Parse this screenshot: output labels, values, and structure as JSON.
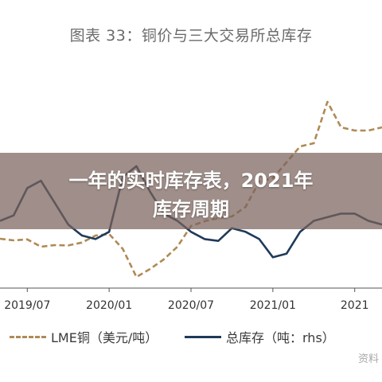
{
  "figure_title": "图表 33：铜价与三大交易所总库存",
  "overlay": {
    "line1": "一年的实时库存表，2021年",
    "line2": "库存周期"
  },
  "legend": {
    "series1_label": "LME铜（美元/吨）",
    "series2_label": "总库存（吨：rhs）"
  },
  "watermark": "资料",
  "colors": {
    "lme": "#b08a55",
    "inventory": "#1f3a5a",
    "axis": "#555555",
    "overlay": "#7a625c"
  },
  "chart_data": {
    "type": "line",
    "title": "图表 33：铜价与三大交易所总库存",
    "x_tick_labels": [
      "2019/07",
      "2020/01",
      "2020/07",
      "2021/01",
      "2021"
    ],
    "x_range": [
      "2019-05",
      "2021-09"
    ],
    "series": [
      {
        "name": "LME铜（美元/吨）",
        "style": "dashed",
        "axis": "left",
        "x": [
          "2019-05",
          "2019-06",
          "2019-07",
          "2019-08",
          "2019-09",
          "2019-10",
          "2019-11",
          "2019-12",
          "2020-01",
          "2020-02",
          "2020-03",
          "2020-04",
          "2020-05",
          "2020-06",
          "2020-07",
          "2020-08",
          "2020-09",
          "2020-10",
          "2020-11",
          "2020-12",
          "2021-01",
          "2021-02",
          "2021-03",
          "2021-04",
          "2021-05",
          "2021-06",
          "2021-07",
          "2021-08",
          "2021-09"
        ],
        "values": [
          6000,
          5950,
          5980,
          5750,
          5800,
          5790,
          5880,
          6100,
          6150,
          5680,
          4800,
          5050,
          5350,
          5750,
          6400,
          6550,
          6650,
          6700,
          7000,
          7800,
          7900,
          8400,
          8900,
          9000,
          10300,
          9500,
          9400,
          9400,
          9500
        ]
      },
      {
        "name": "总库存（吨：rhs）",
        "style": "solid",
        "axis": "right",
        "x": [
          "2019-05",
          "2019-06",
          "2019-07",
          "2019-08",
          "2019-09",
          "2019-10",
          "2019-11",
          "2019-12",
          "2020-01",
          "2020-02",
          "2020-03",
          "2020-04",
          "2020-05",
          "2020-06",
          "2020-07",
          "2020-08",
          "2020-09",
          "2020-10",
          "2020-11",
          "2020-12",
          "2021-01",
          "2021-02",
          "2021-03",
          "2021-04",
          "2021-05",
          "2021-06",
          "2021-07",
          "2021-08",
          "2021-09"
        ],
        "values": [
          330000,
          345000,
          420000,
          440000,
          380000,
          320000,
          290000,
          280000,
          300000,
          450000,
          480000,
          410000,
          350000,
          330000,
          300000,
          280000,
          275000,
          310000,
          300000,
          280000,
          230000,
          240000,
          300000,
          330000,
          340000,
          350000,
          350000,
          330000,
          320000
        ]
      }
    ]
  }
}
